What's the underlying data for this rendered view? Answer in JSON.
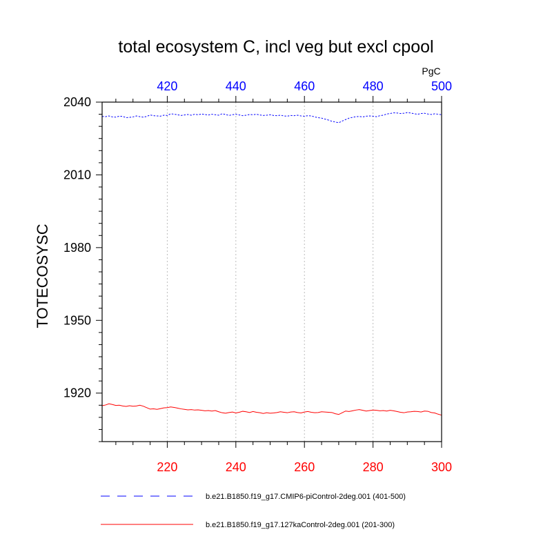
{
  "chart_data": {
    "type": "line",
    "title": "total ecosystem C, incl veg but excl cpool",
    "units": "PgC",
    "ylabel": "TOTECOSYSC",
    "ylim": [
      1900,
      2040
    ],
    "yticks": [
      1920,
      1950,
      1980,
      2010,
      2040
    ],
    "x_bottom": {
      "range": [
        201,
        300
      ],
      "ticks": [
        220,
        240,
        260,
        280,
        300
      ],
      "color": "#ff0000"
    },
    "x_top": {
      "range": [
        401,
        500
      ],
      "ticks": [
        420,
        440,
        460,
        480,
        500
      ],
      "color": "#0000ff"
    },
    "grid": "vertical-dotted",
    "series": [
      {
        "name": "b.e21.B1850.f19_g17.CMIP6-piControl-2deg.001 (401-500)",
        "axis": "top",
        "color": "#0000ff",
        "dash": "dashed",
        "x_start": 401,
        "values": [
          2034.1,
          2034.0,
          2034.3,
          2033.9,
          2033.8,
          2034.2,
          2034.1,
          2033.6,
          2033.7,
          2033.9,
          2034.3,
          2034.0,
          2033.8,
          2034.1,
          2034.7,
          2034.4,
          2034.3,
          2034.2,
          2034.6,
          2034.5,
          2035.2,
          2035.0,
          2034.8,
          2034.5,
          2034.7,
          2034.9,
          2034.6,
          2035.0,
          2034.8,
          2035.1,
          2034.9,
          2034.7,
          2035.0,
          2034.8,
          2034.6,
          2035.2,
          2034.9,
          2034.5,
          2034.8,
          2035.0,
          2034.7,
          2034.4,
          2034.6,
          2034.9,
          2034.8,
          2035.0,
          2034.7,
          2034.5,
          2034.6,
          2034.8,
          2034.5,
          2034.4,
          2034.6,
          2034.3,
          2034.2,
          2034.5,
          2034.4,
          2034.6,
          2034.3,
          2034.2,
          2034.4,
          2034.3,
          2033.9,
          2033.6,
          2033.4,
          2033.0,
          2032.6,
          2032.1,
          2031.8,
          2031.5,
          2032.2,
          2032.8,
          2033.4,
          2033.7,
          2034.0,
          2034.1,
          2033.9,
          2034.2,
          2034.3,
          2034.2,
          2034.0,
          2034.4,
          2034.6,
          2035.1,
          2035.3,
          2035.6,
          2035.5,
          2035.3,
          2035.4,
          2035.7,
          2035.5,
          2035.2,
          2035.0,
          2035.3,
          2035.4,
          2035.1,
          2034.9,
          2035.2,
          2035.0,
          2034.8
        ]
      },
      {
        "name": "b.e21.B1850.f19_g17.127kaControl-2deg.001 (201-300)",
        "axis": "bottom",
        "color": "#ff0000",
        "dash": "solid",
        "x_start": 201,
        "values": [
          1914.8,
          1915.1,
          1915.6,
          1915.3,
          1914.9,
          1915.0,
          1914.7,
          1914.5,
          1914.8,
          1914.6,
          1914.7,
          1915.0,
          1914.6,
          1914.0,
          1913.4,
          1913.5,
          1913.3,
          1913.6,
          1913.9,
          1914.0,
          1914.3,
          1914.1,
          1913.8,
          1913.5,
          1913.3,
          1913.1,
          1913.2,
          1913.0,
          1913.1,
          1912.9,
          1912.7,
          1912.8,
          1912.6,
          1912.8,
          1912.3,
          1911.9,
          1911.7,
          1912.0,
          1912.2,
          1911.8,
          1912.1,
          1912.5,
          1912.3,
          1912.0,
          1912.4,
          1912.1,
          1911.9,
          1911.6,
          1911.9,
          1911.7,
          1911.8,
          1912.0,
          1912.3,
          1912.1,
          1911.9,
          1912.2,
          1912.3,
          1912.0,
          1911.8,
          1912.2,
          1912.4,
          1912.1,
          1911.9,
          1912.0,
          1912.3,
          1912.2,
          1912.1,
          1912.0,
          1911.5,
          1911.2,
          1911.9,
          1912.6,
          1912.4,
          1912.7,
          1913.0,
          1913.2,
          1912.9,
          1912.6,
          1912.8,
          1913.0,
          1912.9,
          1912.7,
          1912.8,
          1912.6,
          1912.9,
          1912.7,
          1912.4,
          1912.1,
          1911.9,
          1912.2,
          1912.3,
          1912.5,
          1912.4,
          1912.2,
          1912.6,
          1912.5,
          1912.0,
          1911.8,
          1911.3,
          1910.9
        ]
      }
    ]
  }
}
